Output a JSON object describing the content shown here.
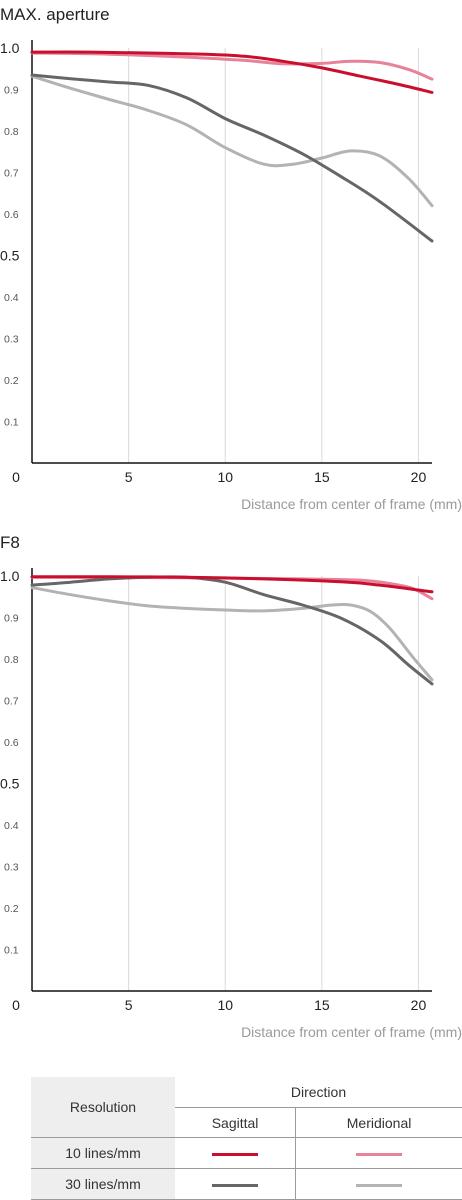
{
  "chart_data": [
    {
      "type": "line",
      "title": "MAX. aperture",
      "xlabel": "Distance from center of frame (mm)",
      "xlim": [
        0,
        20.7
      ],
      "ylim": [
        0,
        1.0
      ],
      "xticks": [
        "0",
        "5",
        "10",
        "15",
        "20"
      ],
      "yticks_major": [
        "1.0",
        "0.5"
      ],
      "yticks_minor": [
        "0.9",
        "0.8",
        "0.7",
        "0.6",
        "0.4",
        "0.3",
        "0.2",
        "0.1"
      ],
      "series": [
        {
          "name": "10 lines/mm Sagittal",
          "color": "#c8102e",
          "x": [
            0,
            3,
            6,
            9,
            11,
            13,
            15,
            17,
            19,
            20.7
          ],
          "y": [
            0.99,
            0.99,
            0.988,
            0.985,
            0.98,
            0.968,
            0.952,
            0.932,
            0.912,
            0.893
          ]
        },
        {
          "name": "10 lines/mm Meridional",
          "color": "#e8819a",
          "x": [
            0,
            4,
            8,
            11,
            13,
            15,
            16.5,
            18,
            19.5,
            20.7
          ],
          "y": [
            0.988,
            0.985,
            0.978,
            0.97,
            0.962,
            0.963,
            0.968,
            0.965,
            0.948,
            0.925
          ]
        },
        {
          "name": "30 lines/mm Sagittal",
          "color": "#666666",
          "x": [
            0,
            2,
            4,
            6,
            8,
            10,
            12,
            14,
            16,
            18,
            20.7
          ],
          "y": [
            0.935,
            0.926,
            0.918,
            0.91,
            0.88,
            0.83,
            0.79,
            0.745,
            0.69,
            0.63,
            0.535
          ]
        },
        {
          "name": "30 lines/mm Meridional",
          "color": "#b3b3b3",
          "x": [
            0,
            2,
            4,
            6,
            8,
            10,
            12,
            13.5,
            15,
            16.5,
            18,
            19.5,
            20.7
          ],
          "y": [
            0.932,
            0.903,
            0.876,
            0.85,
            0.815,
            0.76,
            0.72,
            0.72,
            0.735,
            0.752,
            0.74,
            0.685,
            0.62
          ]
        }
      ]
    },
    {
      "type": "line",
      "title": "F8",
      "xlabel": "Distance from center of frame (mm)",
      "xlim": [
        0,
        20.7
      ],
      "ylim": [
        0,
        1.0
      ],
      "xticks": [
        "0",
        "5",
        "10",
        "15",
        "20"
      ],
      "yticks_major": [
        "1.0",
        "0.5"
      ],
      "yticks_minor": [
        "0.9",
        "0.8",
        "0.7",
        "0.6",
        "0.4",
        "0.3",
        "0.2",
        "0.1"
      ],
      "series": [
        {
          "name": "10 lines/mm Sagittal",
          "color": "#c8102e",
          "x": [
            0,
            4,
            8,
            12,
            16,
            18,
            20.7
          ],
          "y": [
            0.998,
            0.998,
            0.997,
            0.993,
            0.986,
            0.978,
            0.962
          ]
        },
        {
          "name": "10 lines/mm Meridional",
          "color": "#e8819a",
          "x": [
            0,
            8,
            14,
            17,
            18.5,
            19.7,
            20.7
          ],
          "y": [
            0.997,
            0.996,
            0.993,
            0.99,
            0.982,
            0.97,
            0.945
          ]
        },
        {
          "name": "30 lines/mm Sagittal",
          "color": "#666666",
          "x": [
            0,
            2,
            4,
            6,
            8,
            10,
            12,
            14,
            16,
            18,
            19.5,
            20.7
          ],
          "y": [
            0.978,
            0.985,
            0.993,
            0.997,
            0.997,
            0.985,
            0.955,
            0.93,
            0.898,
            0.845,
            0.785,
            0.74
          ]
        },
        {
          "name": "30 lines/mm Meridional",
          "color": "#b3b3b3",
          "x": [
            0,
            2,
            4,
            6,
            8,
            10,
            12,
            14,
            15.5,
            16.5,
            17.5,
            18.5,
            19.7,
            20.7
          ],
          "y": [
            0.972,
            0.955,
            0.94,
            0.928,
            0.922,
            0.918,
            0.916,
            0.922,
            0.93,
            0.93,
            0.915,
            0.875,
            0.805,
            0.75
          ]
        }
      ]
    }
  ],
  "legend": {
    "resolution_header": "Resolution",
    "direction_header": "Direction",
    "sagittal_label": "Sagittal",
    "meridional_label": "Meridional",
    "rows": [
      {
        "label": "10 lines/mm",
        "sagittal_color": "#c8102e",
        "meridional_color": "#e8819a"
      },
      {
        "label": "30 lines/mm",
        "sagittal_color": "#666666",
        "meridional_color": "#b3b3b3"
      }
    ]
  }
}
